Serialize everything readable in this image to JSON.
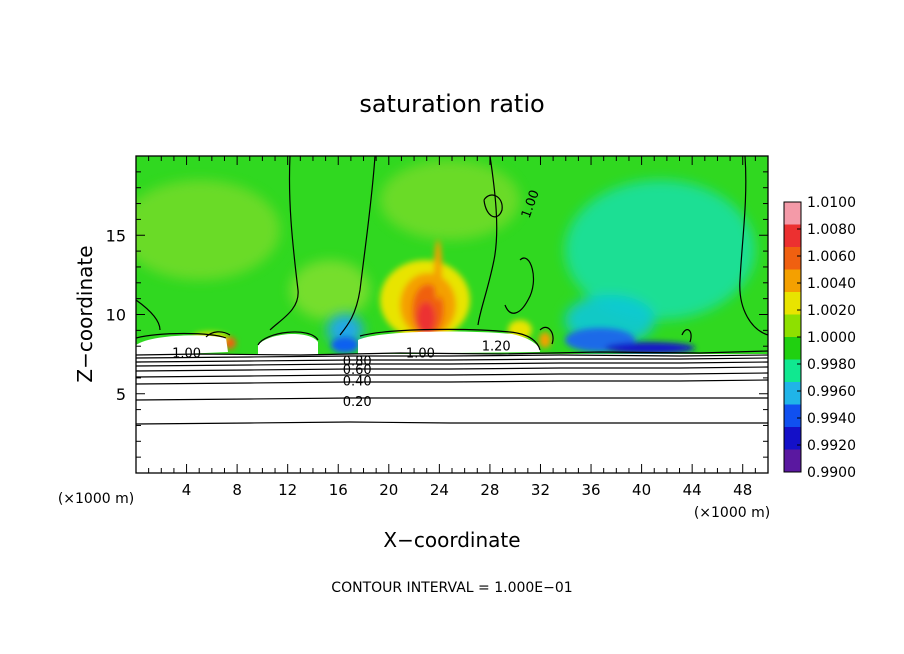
{
  "chart_data": {
    "type": "heatmap",
    "title": "saturation ratio",
    "xlabel": "X−coordinate",
    "ylabel": "Z−coordinate",
    "x_unit": "(×1000 m)",
    "y_unit": "(×1000 m)",
    "xlim": [
      0,
      50
    ],
    "ylim": [
      0,
      20
    ],
    "x_ticks": [
      "4",
      "8",
      "12",
      "16",
      "20",
      "24",
      "28",
      "32",
      "36",
      "40",
      "44",
      "48"
    ],
    "y_ticks": [
      "5",
      "10",
      "15"
    ],
    "colorbar_ticks": [
      "1.0100",
      "1.0080",
      "1.0060",
      "1.0040",
      "1.0020",
      "1.0000",
      "0.9980",
      "0.9960",
      "0.9940",
      "0.9920",
      "0.9900"
    ],
    "colorbar_colors": [
      "#f49aa8",
      "#ec3030",
      "#f06010",
      "#f4a000",
      "#e8e400",
      "#8ee000",
      "#20d010",
      "#10e890",
      "#20b4e8",
      "#1050f0",
      "#1410c8",
      "#5a18a0"
    ],
    "contour_labels": [
      {
        "text": "1.00",
        "x": 4,
        "z": 7.6
      },
      {
        "text": "0.80",
        "x": 17.5,
        "z": 7.1
      },
      {
        "text": "0.60",
        "x": 17.5,
        "z": 6.55
      },
      {
        "text": "0.40",
        "x": 17.5,
        "z": 5.85
      },
      {
        "text": "0.20",
        "x": 17.5,
        "z": 4.55
      },
      {
        "text": "1.00",
        "x": 22.5,
        "z": 7.6
      },
      {
        "text": "1.20",
        "x": 28.5,
        "z": 8.05
      },
      {
        "text": "1.00",
        "x": 31.5,
        "z": 17.2
      }
    ],
    "contour_interval_label": "CONTOUR INTERVAL = 1.000E−01"
  }
}
